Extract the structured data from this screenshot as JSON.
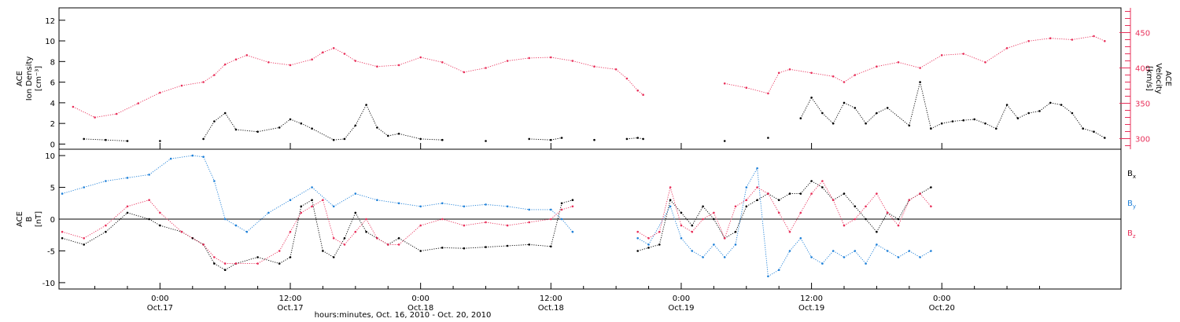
{
  "chart_data": [
    {
      "type": "scatter",
      "panel": "plasma",
      "ylabel_lines": [
        "ACE",
        "Ion Density",
        "[cm⁻³]"
      ],
      "y2label_lines": [
        "ACE",
        "Velocity",
        "[km/s]"
      ],
      "xlim_hours": [
        -9.3,
        88.5
      ],
      "ylim": [
        -0.5,
        13.2
      ],
      "yticks": [
        0,
        2,
        4,
        6,
        8,
        10,
        12
      ],
      "y2lim": [
        285,
        485
      ],
      "y2ticks": [
        300,
        350,
        400,
        450
      ],
      "series": [
        {
          "color": "#000000",
          "axis": "left",
          "x_hours": [
            -7,
            -5,
            -3,
            0,
            4,
            5,
            6,
            7,
            9,
            11,
            12,
            13,
            14,
            16,
            17,
            18,
            19,
            20,
            21,
            22,
            24,
            26,
            30,
            34,
            36,
            37,
            40,
            43,
            44,
            44.5,
            52,
            56,
            59,
            60,
            61,
            62,
            63,
            64,
            65,
            66,
            67,
            69,
            70,
            71,
            72,
            73,
            74,
            75,
            76,
            77,
            78,
            79,
            80,
            81,
            82,
            83,
            84,
            85,
            86,
            87
          ],
          "values": [
            0.5,
            0.4,
            0.3,
            0.3,
            0.5,
            2.2,
            3.0,
            1.4,
            1.2,
            1.6,
            2.4,
            2.0,
            1.5,
            0.4,
            0.5,
            1.8,
            3.8,
            1.6,
            0.8,
            1.0,
            0.5,
            0.4,
            0.3,
            0.5,
            0.4,
            0.6,
            0.4,
            0.5,
            0.6,
            0.5,
            0.3,
            0.6,
            2.5,
            4.5,
            3.0,
            2.0,
            4.0,
            3.5,
            2.0,
            3.0,
            3.5,
            1.8,
            6.0,
            1.5,
            2.0,
            2.2,
            2.3,
            2.4,
            2.0,
            1.5,
            3.8,
            2.5,
            3.0,
            3.2,
            4.0,
            3.8,
            3.0,
            1.5,
            1.2,
            0.6
          ]
        },
        {
          "color": "#e8305a",
          "axis": "right",
          "x_hours": [
            -8,
            -6,
            -4,
            -2,
            0,
            2,
            4,
            5,
            6,
            7,
            8,
            10,
            12,
            14,
            15,
            16,
            17,
            18,
            20,
            22,
            24,
            26,
            28,
            30,
            32,
            34,
            36,
            38,
            40,
            42,
            43,
            44,
            44.5,
            52,
            54,
            56,
            57,
            58,
            60,
            62,
            63,
            64,
            66,
            68,
            70,
            72,
            74,
            76,
            78,
            80,
            82,
            84,
            86,
            87
          ],
          "values": [
            345,
            330,
            335,
            350,
            365,
            375,
            380,
            390,
            405,
            412,
            418,
            408,
            404,
            412,
            422,
            428,
            420,
            410,
            402,
            404,
            415,
            408,
            394,
            400,
            410,
            414,
            415,
            410,
            402,
            398,
            385,
            368,
            362,
            378,
            372,
            364,
            393,
            398,
            393,
            388,
            380,
            390,
            402,
            408,
            400,
            418,
            420,
            408,
            428,
            438,
            442,
            440,
            445,
            438
          ]
        }
      ]
    },
    {
      "type": "scatter",
      "panel": "magnetic-field",
      "ylabel_lines": [
        "ACE",
        "B",
        "[nT]"
      ],
      "xlim_hours": [
        -9.3,
        88.5
      ],
      "ylim": [
        -11,
        11
      ],
      "yticks": [
        -10,
        -5,
        0,
        5,
        10
      ],
      "zero_line": true,
      "xlabel": "hours:minutes, Oct. 16, 2010 - Oct. 20, 2010",
      "xticks": [
        {
          "hours": 0,
          "time": "0:00",
          "date": "Oct.17"
        },
        {
          "hours": 12,
          "time": "12:00",
          "date": "Oct.17"
        },
        {
          "hours": 24,
          "time": "0:00",
          "date": "Oct.18"
        },
        {
          "hours": 36,
          "time": "12:00",
          "date": "Oct.18"
        },
        {
          "hours": 48,
          "time": "0:00",
          "date": "Oct.19"
        },
        {
          "hours": 60,
          "time": "12:00",
          "date": "Oct.19"
        },
        {
          "hours": 72,
          "time": "0:00",
          "date": "Oct.20"
        }
      ],
      "series": [
        {
          "name": "Bx",
          "color": "#000000",
          "x_hours": [
            -9,
            -7,
            -5,
            -3,
            -1,
            0,
            2,
            3,
            4,
            5,
            6,
            7,
            9,
            11,
            12,
            13,
            14,
            15,
            16,
            17,
            18,
            19,
            20,
            21,
            22,
            24,
            26,
            28,
            30,
            32,
            34,
            36,
            37,
            38,
            44,
            45,
            46,
            47,
            48,
            49,
            50,
            51,
            52,
            53,
            54,
            55,
            56,
            57,
            58,
            59,
            60,
            61,
            62,
            63,
            64,
            65,
            66,
            67,
            68,
            69,
            70,
            71
          ],
          "values": [
            -3,
            -4,
            -2,
            1,
            0,
            -1,
            -2,
            -3,
            -4,
            -7,
            -8,
            -7,
            -6,
            -7,
            -6,
            2,
            3,
            -5,
            -6,
            -3,
            1,
            -2,
            -3,
            -4,
            -3,
            -5,
            -4.5,
            -4.6,
            -4.4,
            -4.2,
            -4.0,
            -4.3,
            2.5,
            3.0,
            -5,
            -4.5,
            -4,
            3,
            1,
            -1,
            2,
            0,
            -3,
            -2,
            2,
            3,
            4,
            3,
            4,
            4,
            6,
            5,
            3,
            4,
            2,
            0,
            -2,
            1,
            0,
            3,
            4,
            5
          ]
        },
        {
          "name": "By",
          "color": "#1f80d8",
          "x_hours": [
            -9,
            -7,
            -5,
            -3,
            -1,
            1,
            3,
            4,
            5,
            6,
            7,
            8,
            10,
            12,
            14,
            16,
            18,
            20,
            22,
            24,
            26,
            28,
            30,
            32,
            34,
            36,
            37,
            38,
            44,
            45,
            47,
            48,
            49,
            50,
            51,
            52,
            53,
            54,
            55,
            56,
            57,
            58,
            59,
            60,
            61,
            62,
            63,
            64,
            65,
            66,
            67,
            68,
            69,
            70,
            71
          ],
          "values": [
            4,
            5,
            6,
            6.5,
            7,
            9.5,
            10,
            9.8,
            6,
            0,
            -1,
            -2,
            1,
            3,
            5,
            2,
            4,
            3,
            2.5,
            2,
            2.5,
            2,
            2.3,
            2.0,
            1.5,
            1.5,
            0,
            -2,
            -3,
            -4,
            2,
            -3,
            -5,
            -6,
            -4,
            -6,
            -4,
            5,
            8,
            -9,
            -8,
            -5,
            -3,
            -6,
            -7,
            -5,
            -6,
            -5,
            -7,
            -4,
            -5,
            -6,
            -5,
            -6,
            -5
          ]
        },
        {
          "name": "Bz",
          "color": "#e8305a",
          "x_hours": [
            -9,
            -7,
            -5,
            -3,
            -1,
            0,
            2,
            4,
            5,
            6,
            7,
            9,
            11,
            12,
            13,
            14,
            15,
            16,
            17,
            18,
            19,
            20,
            21,
            22,
            24,
            26,
            28,
            30,
            32,
            34,
            36,
            37,
            38,
            44,
            45,
            46,
            47,
            48,
            49,
            50,
            51,
            52,
            53,
            54,
            55,
            56,
            57,
            58,
            59,
            60,
            61,
            62,
            63,
            64,
            65,
            66,
            67,
            68,
            69,
            70,
            71
          ],
          "values": [
            -2,
            -3,
            -1,
            2,
            3,
            1,
            -2,
            -4,
            -6,
            -7,
            -7,
            -7,
            -5,
            -2,
            1,
            2,
            3,
            -3,
            -4,
            -2,
            0,
            -3,
            -4,
            -4,
            -1,
            0,
            -1,
            -0.5,
            -1,
            -0.5,
            0,
            1.5,
            2,
            -2,
            -3,
            -2,
            5,
            -1,
            -2,
            0,
            1,
            -3,
            2,
            3,
            5,
            4,
            1,
            -2,
            1,
            4,
            6,
            3,
            -1,
            0,
            2,
            4,
            1,
            -1,
            3,
            4,
            2
          ]
        }
      ]
    }
  ]
}
